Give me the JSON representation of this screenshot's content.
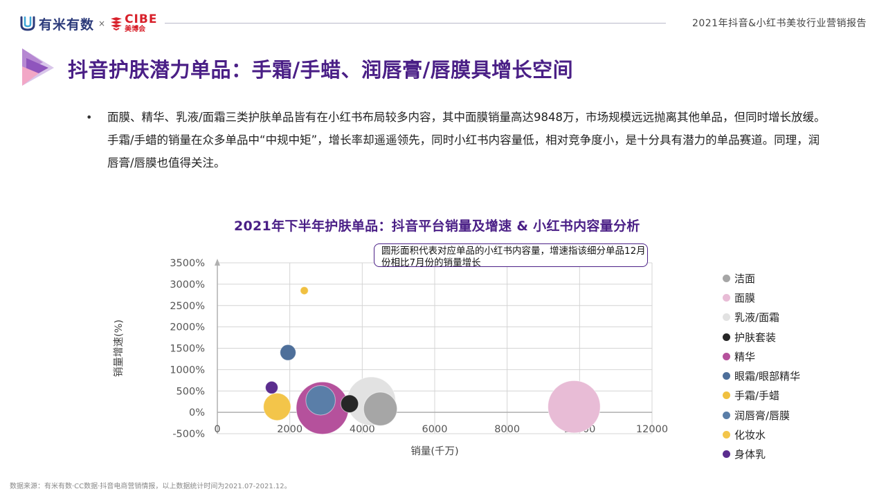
{
  "header": {
    "brand1": "有米有数",
    "separator": "×",
    "brand2": "CIBE",
    "brand2_sub": "美博会",
    "report_title": "2021年抖音&小红书美妆行业营销报告"
  },
  "page": {
    "title": "抖音护肤潜力单品：手霜/手蜡、润唇膏/唇膜具增长空间",
    "bullet": "•",
    "body": "面膜、精华、乳液/面霜三类护肤单品皆有在小红书布局较多内容，其中面膜销量高达9848万，市场规模远远抛离其他单品，但同时增长放缓。手霜/手蜡的销量在众多单品中“中规中矩”，增长率却遥遥领先，同时小红书内容量低，相对竞争度小，是十分具有潜力的单品赛道。同理，润唇膏/唇膜也值得关注。",
    "source": "数据来源：有米有数·CC数据·抖音电商营销情报，以上数据统计时间为2021.07-2021.12。"
  },
  "chart_note": "圆形面积代表对应单品的小红书内容量，增速指该细分单品12月份相比7月份的销量增长",
  "colors": {
    "title_purple": "#4a1f86",
    "accent_red": "#d8202a",
    "axis": "#b0b0b0",
    "grid": "#d4d4d4"
  },
  "chart_data": {
    "type": "bubble",
    "title": "2021年下半年护肤单品：抖音平台销量及增速 & 小红书内容量分析",
    "xlabel": "销量(千万)",
    "ylabel": "销量增速(%)",
    "xlim": [
      0,
      12000
    ],
    "ylim": [
      -500,
      3500
    ],
    "xticks": [
      0,
      2000,
      4000,
      6000,
      8000,
      10000,
      12000
    ],
    "yticks": [
      -500,
      0,
      500,
      1000,
      1500,
      2000,
      2500,
      3000,
      3500
    ],
    "ytick_suffix": "%",
    "grid": true,
    "legend_position": "right",
    "series": [
      {
        "name": "洁面",
        "x": 4500,
        "y": 80,
        "content": 1.8,
        "color": "#a6a6a6"
      },
      {
        "name": "面膜",
        "x": 9848,
        "y": 130,
        "content": 4.4,
        "color": "#e8bcd6"
      },
      {
        "name": "乳液/面霜",
        "x": 4250,
        "y": 260,
        "content": 3.8,
        "color": "#e2e2e2"
      },
      {
        "name": "护肤套装",
        "x": 3650,
        "y": 200,
        "content": 0.5,
        "color": "#262626"
      },
      {
        "name": "精华",
        "x": 2900,
        "y": 100,
        "content": 4.4,
        "color": "#b5519c"
      },
      {
        "name": "眼霜/眼部精华",
        "x": 1950,
        "y": 1400,
        "content": 0.4,
        "color": "#4e6f9a"
      },
      {
        "name": "手霜/手蜡",
        "x": 2400,
        "y": 2850,
        "content": 0.1,
        "color": "#f0c040"
      },
      {
        "name": "润唇膏/唇膜",
        "x": 2850,
        "y": 280,
        "content": 1.4,
        "color": "#5a7ea8"
      },
      {
        "name": "化妆水",
        "x": 1650,
        "y": 130,
        "content": 1.2,
        "color": "#f3c54a"
      },
      {
        "name": "身体乳",
        "x": 1500,
        "y": 580,
        "content": 0.25,
        "color": "#5b2d8e"
      }
    ]
  }
}
